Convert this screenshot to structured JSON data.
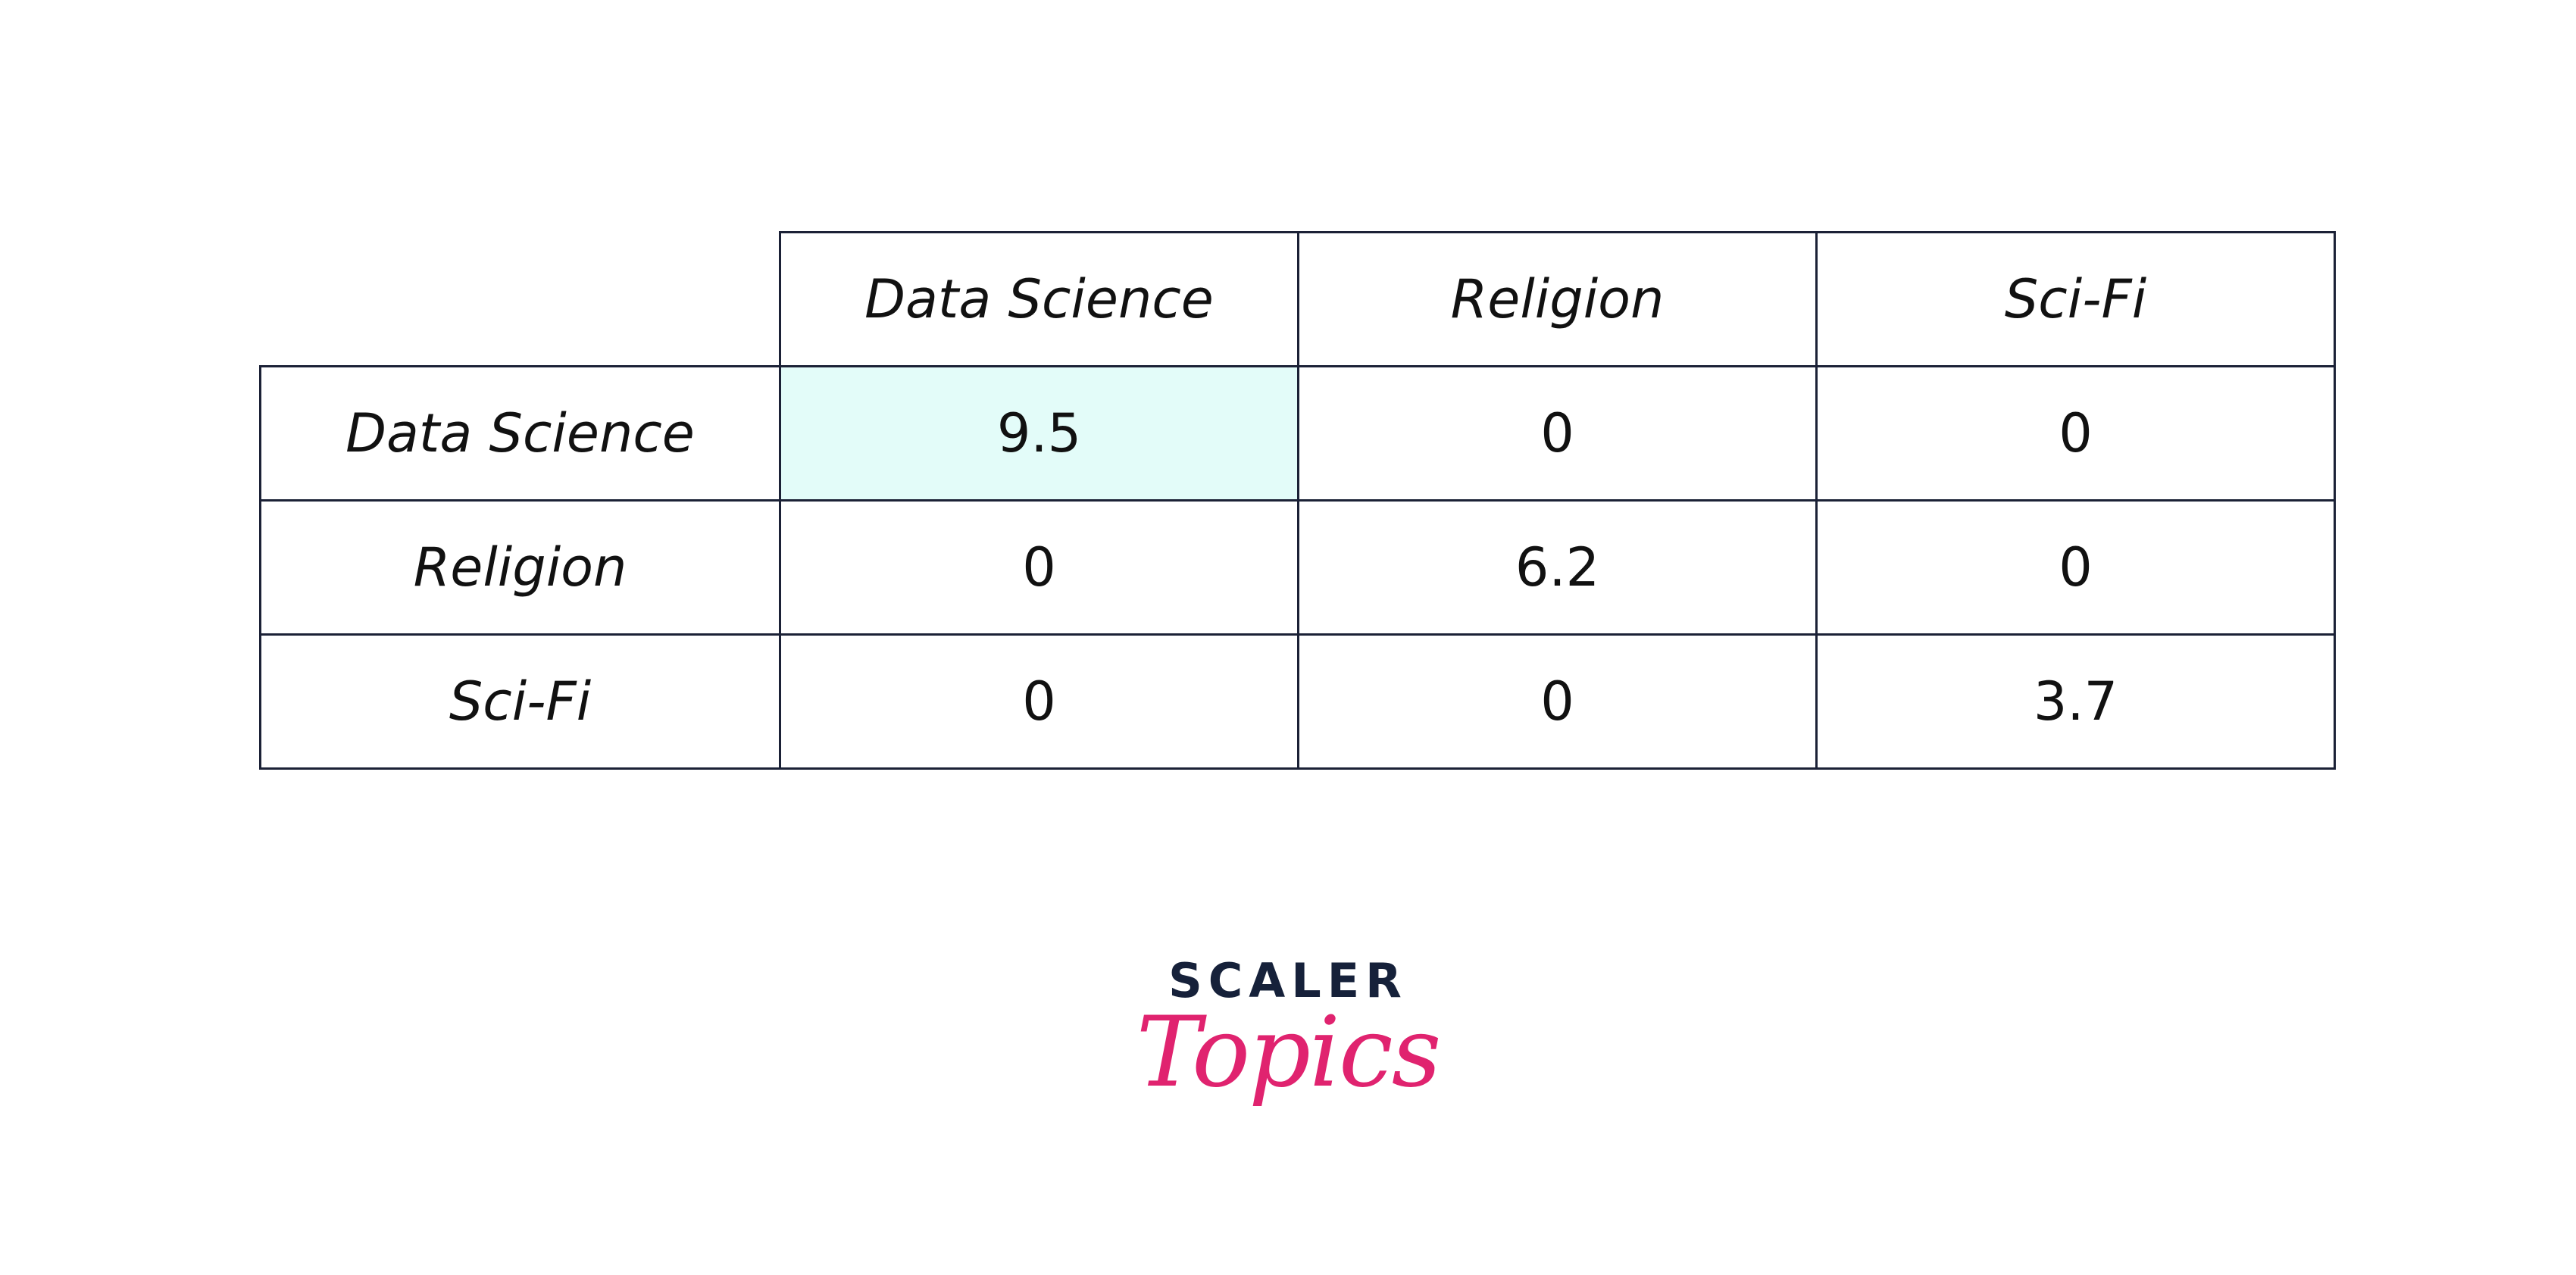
{
  "table": {
    "columns": [
      "Data Science",
      "Religion",
      "Sci-Fi"
    ],
    "rows": [
      {
        "label": "Data Science",
        "cells": [
          9.5,
          0,
          0
        ]
      },
      {
        "label": "Religion",
        "cells": [
          0,
          6.2,
          0
        ]
      },
      {
        "label": "Sci-Fi",
        "cells": [
          0,
          0,
          3.7
        ]
      }
    ]
  },
  "logo": {
    "brand": "SCALER",
    "product": "Topics"
  }
}
